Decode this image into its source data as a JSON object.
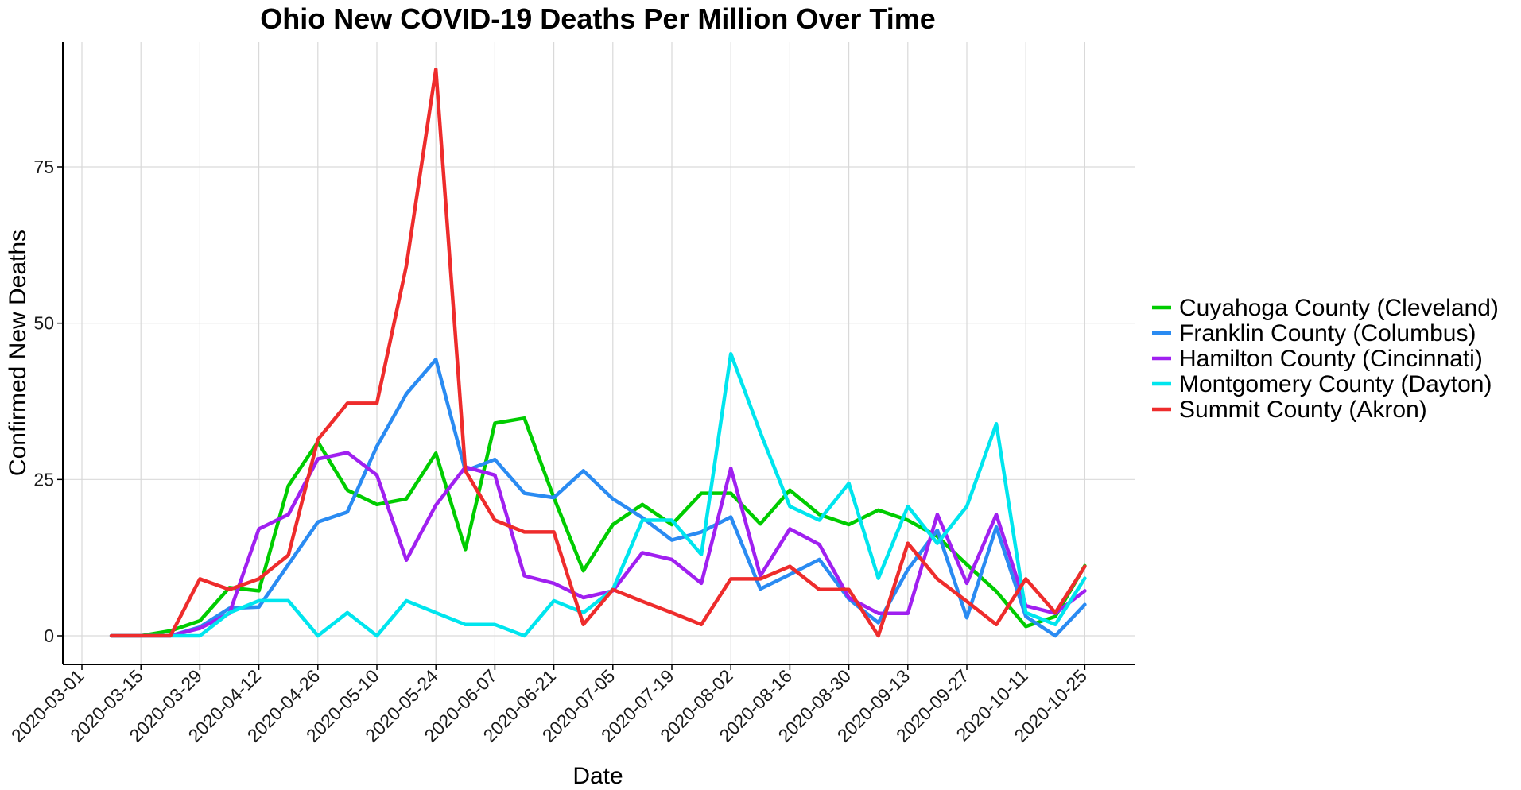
{
  "chart_data": {
    "type": "line",
    "title": "Ohio New COVID-19 Deaths Per Million Over Time",
    "xlabel": "Date",
    "ylabel": "Confirmed New Deaths",
    "ylim": [
      -5,
      95
    ],
    "yticks": [
      0,
      25,
      50,
      75
    ],
    "xticks": [
      "2020-03-01",
      "2020-03-15",
      "2020-03-29",
      "2020-04-12",
      "2020-04-26",
      "2020-05-10",
      "2020-05-24",
      "2020-06-07",
      "2020-06-21",
      "2020-07-05",
      "2020-07-19",
      "2020-08-02",
      "2020-08-16",
      "2020-08-30",
      "2020-09-13",
      "2020-09-27",
      "2020-10-11",
      "2020-10-25"
    ],
    "x": [
      "2020-03-08",
      "2020-03-15",
      "2020-03-22",
      "2020-03-29",
      "2020-04-05",
      "2020-04-12",
      "2020-04-19",
      "2020-04-26",
      "2020-05-03",
      "2020-05-10",
      "2020-05-17",
      "2020-05-24",
      "2020-05-31",
      "2020-06-07",
      "2020-06-14",
      "2020-06-21",
      "2020-06-28",
      "2020-07-05",
      "2020-07-12",
      "2020-07-19",
      "2020-07-26",
      "2020-08-02",
      "2020-08-09",
      "2020-08-16",
      "2020-08-23",
      "2020-08-30",
      "2020-09-06",
      "2020-09-13",
      "2020-09-20",
      "2020-09-27",
      "2020-10-04",
      "2020-10-11",
      "2020-10-18",
      "2020-10-25"
    ],
    "grid": true,
    "legend_position": "right",
    "series": [
      {
        "name": "Cuyahoga County (Cleveland)",
        "color": "#00cc00",
        "values": [
          0,
          0,
          0.8,
          2.4,
          7.7,
          7.2,
          24,
          31,
          23.3,
          21,
          21.9,
          29.2,
          13.8,
          34,
          34.8,
          22.1,
          10.4,
          17.8,
          21,
          17.8,
          22.8,
          22.8,
          17.9,
          23.3,
          19.4,
          17.8,
          20.1,
          18.5,
          15.9,
          11.4,
          7.1,
          1.5,
          3.1,
          11.2
        ]
      },
      {
        "name": "Franklin County (Columbus)",
        "color": "#2a8bf2",
        "values": [
          0,
          0,
          0,
          1.4,
          4.4,
          4.6,
          11.4,
          18.2,
          19.8,
          30.3,
          38.7,
          44.2,
          26.4,
          28.2,
          22.8,
          22.1,
          26.4,
          21.9,
          18.9,
          15.3,
          16.6,
          19,
          7.5,
          9.8,
          12.2,
          5.9,
          2.1,
          10.6,
          16.9,
          2.9,
          17.4,
          3.1,
          0,
          5
        ]
      },
      {
        "name": "Hamilton County (Cincinnati)",
        "color": "#a020f0",
        "values": [
          0,
          0,
          0,
          1.2,
          3.6,
          17.1,
          19.4,
          28.3,
          29.3,
          25.7,
          12.1,
          20.9,
          27,
          25.7,
          9.6,
          8.4,
          6.1,
          7.2,
          13.3,
          12.2,
          8.4,
          26.8,
          9.6,
          17.1,
          14.6,
          6.1,
          3.6,
          3.6,
          19.4,
          8.4,
          19.4,
          4.8,
          3.6,
          7.2
        ]
      },
      {
        "name": "Montgomery County (Dayton)",
        "color": "#00e5ee",
        "values": [
          0,
          0,
          0,
          0,
          3.7,
          5.6,
          5.6,
          0,
          3.7,
          0,
          5.6,
          3.7,
          1.8,
          1.8,
          0,
          5.6,
          3.7,
          7.4,
          18.5,
          18.5,
          13,
          45.1,
          32.5,
          20.7,
          18.5,
          24.4,
          9.2,
          20.7,
          14.8,
          20.7,
          33.9,
          3.7,
          1.8,
          9.2
        ]
      },
      {
        "name": "Summit County (Akron)",
        "color": "#ee2c2c",
        "values": [
          0,
          0,
          0,
          9.1,
          7.4,
          9.1,
          12.9,
          31.4,
          37.2,
          37.2,
          59.2,
          90.6,
          26.4,
          18.5,
          16.6,
          16.6,
          1.8,
          7.4,
          5.5,
          3.7,
          1.8,
          9.1,
          9.1,
          11.1,
          7.4,
          7.4,
          0,
          14.8,
          9.1,
          5.5,
          1.8,
          9.1,
          3.7,
          11.1
        ]
      }
    ]
  }
}
